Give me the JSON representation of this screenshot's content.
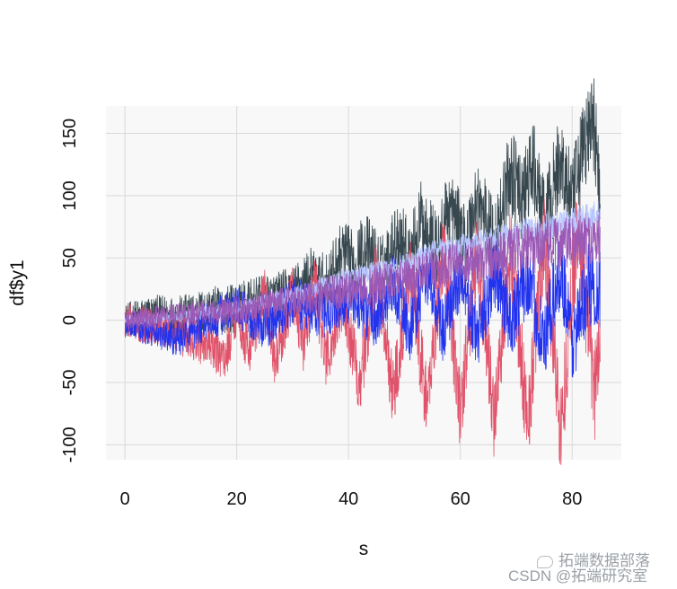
{
  "chart_data": {
    "type": "line",
    "title": "",
    "xlabel": "s",
    "ylabel": "df$y1",
    "xlim": [
      -3.4,
      88.8
    ],
    "ylim": [
      -112,
      172
    ],
    "x_ticks": [
      0,
      20,
      40,
      60,
      80
    ],
    "y_ticks": [
      -100,
      -50,
      0,
      50,
      100,
      150
    ],
    "x_tick_labels": [
      "0",
      "20",
      "40",
      "60",
      "80"
    ],
    "y_tick_labels": [
      "-100",
      "-50",
      "0",
      "50",
      "100",
      "150"
    ],
    "grid": true,
    "legend": "none",
    "x_range": [
      0,
      85
    ],
    "series": [
      {
        "color": "#37474f",
        "points": [
          [
            0,
            0
          ],
          [
            5,
            5
          ],
          [
            10,
            3
          ],
          [
            15,
            8
          ],
          [
            20,
            10
          ],
          [
            25,
            15
          ],
          [
            30,
            20
          ],
          [
            33,
            35
          ],
          [
            36,
            28
          ],
          [
            39,
            55
          ],
          [
            41,
            45
          ],
          [
            43,
            60
          ],
          [
            46,
            40
          ],
          [
            49,
            70
          ],
          [
            51,
            50
          ],
          [
            53,
            82
          ],
          [
            56,
            55
          ],
          [
            58,
            92
          ],
          [
            61,
            60
          ],
          [
            63,
            98
          ],
          [
            66,
            62
          ],
          [
            69,
            120
          ],
          [
            71,
            95
          ],
          [
            73,
            125
          ],
          [
            75,
            75
          ],
          [
            78,
            130
          ],
          [
            80,
            90
          ],
          [
            82,
            140
          ],
          [
            84,
            160
          ],
          [
            85,
            95
          ]
        ]
      },
      {
        "color": "#e0526a",
        "points": [
          [
            0,
            0
          ],
          [
            5,
            -5
          ],
          [
            10,
            -12
          ],
          [
            15,
            -20
          ],
          [
            18,
            -30
          ],
          [
            20,
            10
          ],
          [
            22,
            -25
          ],
          [
            25,
            20
          ],
          [
            27,
            -35
          ],
          [
            30,
            25
          ],
          [
            32,
            -20
          ],
          [
            34,
            30
          ],
          [
            36,
            -35
          ],
          [
            39,
            20
          ],
          [
            42,
            -50
          ],
          [
            45,
            40
          ],
          [
            48,
            -60
          ],
          [
            51,
            40
          ],
          [
            54,
            -70
          ],
          [
            57,
            60
          ],
          [
            60,
            -75
          ],
          [
            63,
            60
          ],
          [
            66,
            -80
          ],
          [
            69,
            60
          ],
          [
            72,
            -85
          ],
          [
            75,
            65
          ],
          [
            78,
            -90
          ],
          [
            81,
            80
          ],
          [
            84,
            -60
          ],
          [
            85,
            -10
          ]
        ]
      },
      {
        "color": "#2233ee",
        "points": [
          [
            0,
            0
          ],
          [
            5,
            -10
          ],
          [
            10,
            -15
          ],
          [
            15,
            0
          ],
          [
            20,
            10
          ],
          [
            25,
            -5
          ],
          [
            30,
            15
          ],
          [
            35,
            5
          ],
          [
            40,
            20
          ],
          [
            45,
            0
          ],
          [
            48,
            30
          ],
          [
            51,
            -10
          ],
          [
            54,
            40
          ],
          [
            57,
            -10
          ],
          [
            60,
            35
          ],
          [
            63,
            -15
          ],
          [
            66,
            40
          ],
          [
            69,
            0
          ],
          [
            72,
            35
          ],
          [
            75,
            -20
          ],
          [
            78,
            45
          ],
          [
            80,
            -20
          ],
          [
            83,
            30
          ],
          [
            85,
            25
          ]
        ]
      },
      {
        "color": "#b8c6ff",
        "points": [
          [
            0,
            0
          ],
          [
            10,
            3
          ],
          [
            20,
            10
          ],
          [
            30,
            20
          ],
          [
            40,
            35
          ],
          [
            50,
            45
          ],
          [
            55,
            55
          ],
          [
            60,
            60
          ],
          [
            65,
            65
          ],
          [
            70,
            70
          ],
          [
            75,
            75
          ],
          [
            80,
            80
          ],
          [
            85,
            85
          ]
        ]
      },
      {
        "color": "#9b59b6",
        "points": [
          [
            0,
            0
          ],
          [
            10,
            5
          ],
          [
            20,
            8
          ],
          [
            30,
            15
          ],
          [
            40,
            25
          ],
          [
            50,
            32
          ],
          [
            55,
            40
          ],
          [
            60,
            45
          ],
          [
            65,
            50
          ],
          [
            70,
            55
          ],
          [
            75,
            60
          ],
          [
            80,
            62
          ],
          [
            85,
            65
          ]
        ]
      }
    ]
  },
  "watermark": {
    "line1": "拓端数据部落",
    "line2": "CSDN @拓端研究室",
    "icon": "chat-bubble-icon"
  }
}
